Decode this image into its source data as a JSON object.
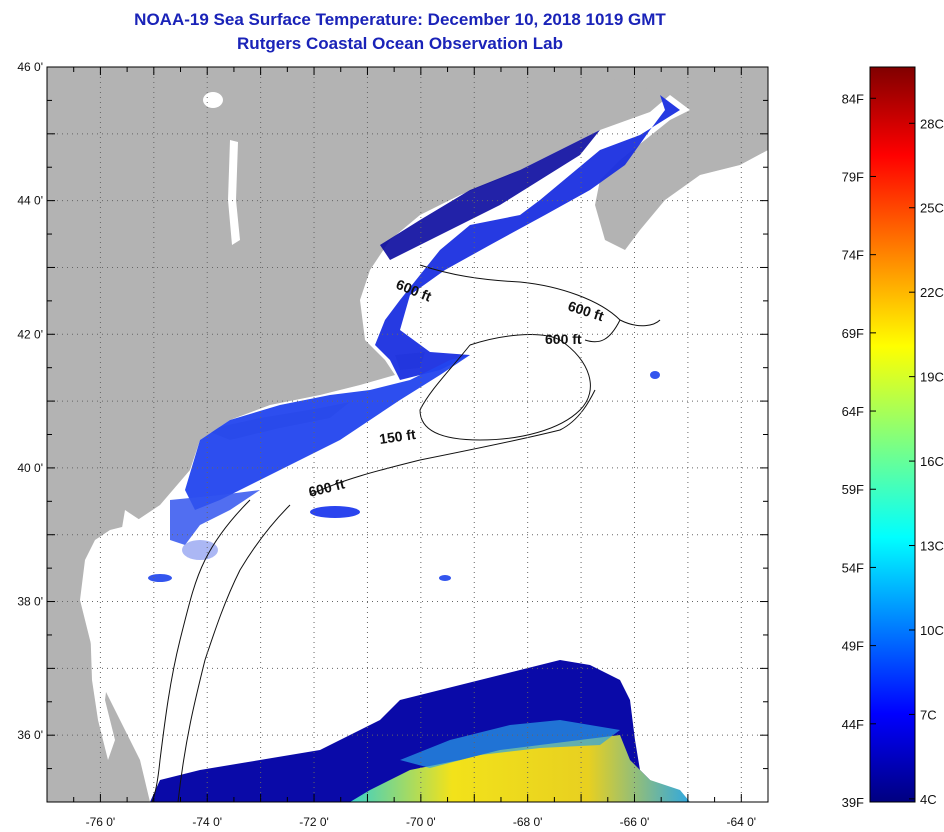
{
  "header": {
    "title": "NOAA-19 Sea Surface Temperature:  December 10, 2018 1019 GMT",
    "subtitle": "Rutgers Coastal Ocean Observation Lab"
  },
  "map": {
    "lat_labels": [
      {
        "value": 46,
        "text": "46 0'"
      },
      {
        "value": 44,
        "text": "44 0'"
      },
      {
        "value": 42,
        "text": "42 0'"
      },
      {
        "value": 40,
        "text": "40 0'"
      },
      {
        "value": 38,
        "text": "38 0'"
      },
      {
        "value": 36,
        "text": "36 0'"
      }
    ],
    "lon_labels": [
      {
        "value": -76,
        "text": "-76 0'"
      },
      {
        "value": -74,
        "text": "-74 0'"
      },
      {
        "value": -72,
        "text": "-72 0'"
      },
      {
        "value": -70,
        "text": "-70 0'"
      },
      {
        "value": -68,
        "text": "-68 0'"
      },
      {
        "value": -66,
        "text": "-66 0'"
      },
      {
        "value": -64,
        "text": "-64 0'"
      }
    ],
    "lon_range": [
      -77,
      -63.5
    ],
    "lat_range": [
      35,
      46
    ],
    "contour_labels": [
      {
        "text": "600 ft"
      },
      {
        "text": "600 ft"
      },
      {
        "text": "600 ft"
      },
      {
        "text": "150 ft"
      },
      {
        "text": "600 ft"
      }
    ],
    "colors": {
      "land": "#b3b3b3",
      "no_data": "#ffffff",
      "cold_water": "#1a2fe0",
      "deep_cold": "#0a0a9e",
      "warm_band": "#f2e21a"
    }
  },
  "colorbar": {
    "f_labels": [
      "84F",
      "79F",
      "74F",
      "69F",
      "64F",
      "59F",
      "54F",
      "49F",
      "44F",
      "39F"
    ],
    "c_labels": [
      "28C",
      "25C",
      "22C",
      "19C",
      "16C",
      "13C",
      "10C",
      "7C",
      "4C"
    ],
    "range_f": [
      39,
      86
    ]
  }
}
